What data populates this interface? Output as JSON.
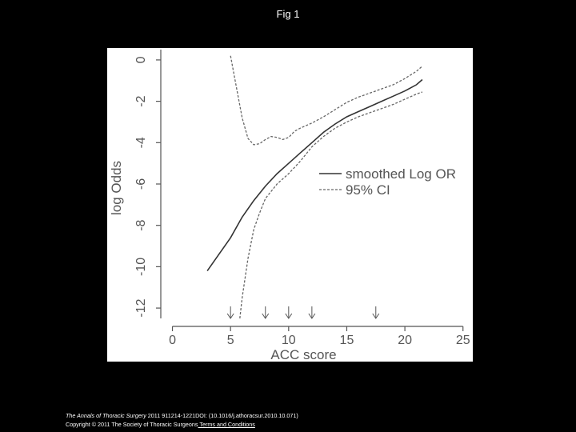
{
  "slide": {
    "title": "Fig 1"
  },
  "citation": {
    "journal": "The Annals of Thoracic Surgery",
    "details": " 2011 911214-1221DOI: (10.1016/j.athoracsur.2010.10.071)",
    "copyright": "Copyright © 2011 The Society of Thoracic Surgeons",
    "link_text": " Terms and Conditions"
  },
  "chart_data": {
    "type": "line",
    "xlabel": "ACC score",
    "ylabel": "log Odds",
    "xlim": [
      -1,
      25.5
    ],
    "ylim": [
      -12.5,
      0.5
    ],
    "xticks": [
      0,
      5,
      10,
      15,
      20,
      25
    ],
    "yticks": [
      0,
      -2,
      -4,
      -6,
      -8,
      -10,
      -12
    ],
    "legend_position": "right",
    "series": [
      {
        "name": "smoothed Log OR",
        "style": "solid",
        "points": [
          [
            3,
            -10.2
          ],
          [
            4,
            -9.4
          ],
          [
            5,
            -8.6
          ],
          [
            6,
            -7.6
          ],
          [
            7,
            -6.8
          ],
          [
            8,
            -6.1
          ],
          [
            9,
            -5.5
          ],
          [
            10,
            -5.0
          ],
          [
            11,
            -4.5
          ],
          [
            12,
            -4.0
          ],
          [
            13,
            -3.5
          ],
          [
            14,
            -3.1
          ],
          [
            15,
            -2.75
          ],
          [
            16,
            -2.5
          ],
          [
            17,
            -2.25
          ],
          [
            18,
            -2.0
          ],
          [
            19,
            -1.75
          ],
          [
            20,
            -1.5
          ],
          [
            21,
            -1.2
          ],
          [
            21.5,
            -0.95
          ]
        ]
      },
      {
        "name": "95% CI",
        "style": "dashed",
        "points": [
          [
            5,
            0.2
          ],
          [
            5.5,
            -1.3
          ],
          [
            6,
            -2.8
          ],
          [
            6.5,
            -3.8
          ],
          [
            7,
            -4.1
          ],
          [
            7.5,
            -4.05
          ],
          [
            8,
            -3.85
          ],
          [
            8.5,
            -3.7
          ],
          [
            9,
            -3.75
          ],
          [
            9.5,
            -3.85
          ],
          [
            10,
            -3.75
          ],
          [
            10.5,
            -3.45
          ],
          [
            11,
            -3.3
          ],
          [
            12,
            -3.05
          ],
          [
            13,
            -2.75
          ],
          [
            14,
            -2.4
          ],
          [
            15,
            -2.05
          ],
          [
            16,
            -1.8
          ],
          [
            17,
            -1.6
          ],
          [
            18,
            -1.4
          ],
          [
            19,
            -1.2
          ],
          [
            20,
            -0.9
          ],
          [
            21,
            -0.55
          ],
          [
            21.5,
            -0.3
          ]
        ]
      },
      {
        "name": "",
        "style": "dashed",
        "points": [
          [
            5.8,
            -12.5
          ],
          [
            6,
            -11.5
          ],
          [
            6.5,
            -9.6
          ],
          [
            7,
            -8.2
          ],
          [
            7.5,
            -7.4
          ],
          [
            8,
            -6.7
          ],
          [
            9,
            -6.0
          ],
          [
            10,
            -5.5
          ],
          [
            11,
            -4.9
          ],
          [
            12,
            -4.2
          ],
          [
            13,
            -3.7
          ],
          [
            14,
            -3.3
          ],
          [
            15,
            -3.0
          ],
          [
            16,
            -2.75
          ],
          [
            17,
            -2.55
          ],
          [
            18,
            -2.35
          ],
          [
            19,
            -2.15
          ],
          [
            20,
            -1.9
          ],
          [
            21,
            -1.65
          ],
          [
            21.5,
            -1.55
          ]
        ]
      }
    ],
    "arrows_x": [
      5,
      8,
      10,
      12,
      17.5
    ]
  }
}
